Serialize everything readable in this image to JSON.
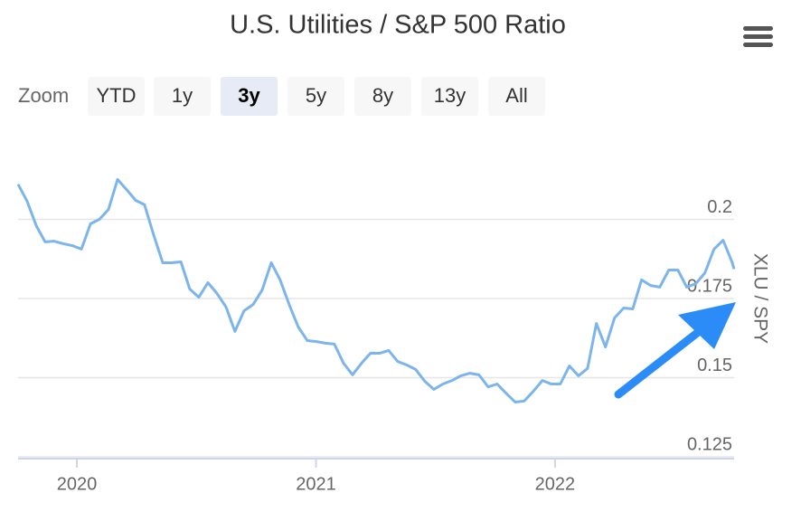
{
  "chart_data": {
    "type": "line",
    "title": "U.S. Utilities / S&P 500 Ratio",
    "y_axis_label": "XLU / SPY",
    "range_selector": {
      "label": "Zoom",
      "buttons": [
        "YTD",
        "1y",
        "3y",
        "5y",
        "8y",
        "13y",
        "All"
      ],
      "selected": 2
    },
    "x": [
      2019.754,
      2019.792,
      2019.83,
      2019.867,
      2019.905,
      2019.943,
      2019.981,
      2020.019,
      2020.057,
      2020.094,
      2020.132,
      2020.17,
      2020.208,
      2020.246,
      2020.283,
      2020.321,
      2020.359,
      2020.397,
      2020.435,
      2020.472,
      2020.51,
      2020.548,
      2020.586,
      2020.624,
      2020.661,
      2020.699,
      2020.737,
      2020.775,
      2020.813,
      2020.85,
      2020.888,
      2020.926,
      2020.964,
      2021.002,
      2021.039,
      2021.077,
      2021.115,
      2021.153,
      2021.191,
      2021.228,
      2021.266,
      2021.304,
      2021.342,
      2021.38,
      2021.417,
      2021.455,
      2021.493,
      2021.531,
      2021.569,
      2021.606,
      2021.644,
      2021.682,
      2021.72,
      2021.758,
      2021.795,
      2021.833,
      2021.871,
      2021.909,
      2021.947,
      2021.984,
      2022.022,
      2022.06,
      2022.098,
      2022.136,
      2022.173,
      2022.211,
      2022.249,
      2022.287,
      2022.325,
      2022.362,
      2022.4,
      2022.438,
      2022.476,
      2022.514,
      2022.551,
      2022.589,
      2022.627,
      2022.665,
      2022.703,
      2022.74,
      2022.749
    ],
    "series": [
      {
        "name": "XLU / SPY",
        "color": "#7cb5ec",
        "values": [
          0.2111,
          0.2057,
          0.198,
          0.1929,
          0.1931,
          0.1923,
          0.1917,
          0.1906,
          0.1986,
          0.2,
          0.2031,
          0.2126,
          0.2094,
          0.206,
          0.2046,
          0.1951,
          0.1863,
          0.1863,
          0.1866,
          0.178,
          0.1754,
          0.18,
          0.1766,
          0.1723,
          0.1646,
          0.1711,
          0.1731,
          0.1777,
          0.1863,
          0.1809,
          0.1731,
          0.166,
          0.1617,
          0.1614,
          0.1609,
          0.1606,
          0.1546,
          0.1509,
          0.1546,
          0.1577,
          0.1577,
          0.1586,
          0.1551,
          0.154,
          0.1526,
          0.1489,
          0.1463,
          0.148,
          0.1491,
          0.1506,
          0.1514,
          0.1509,
          0.1471,
          0.148,
          0.1451,
          0.1423,
          0.1426,
          0.1457,
          0.1491,
          0.148,
          0.148,
          0.1537,
          0.1506,
          0.1529,
          0.1671,
          0.1597,
          0.1689,
          0.172,
          0.1717,
          0.1809,
          0.1791,
          0.1786,
          0.184,
          0.184,
          0.1786,
          0.1797,
          0.1831,
          0.1906,
          0.1934,
          0.1866,
          0.1843
        ]
      }
    ],
    "xlim": [
      2019.754,
      2022.749
    ],
    "xticks": [
      2020,
      2021,
      2022
    ],
    "ylim": [
      0.125,
      0.225
    ],
    "yticks": [
      0.125,
      0.15,
      0.175,
      0.2
    ],
    "grid": true
  }
}
